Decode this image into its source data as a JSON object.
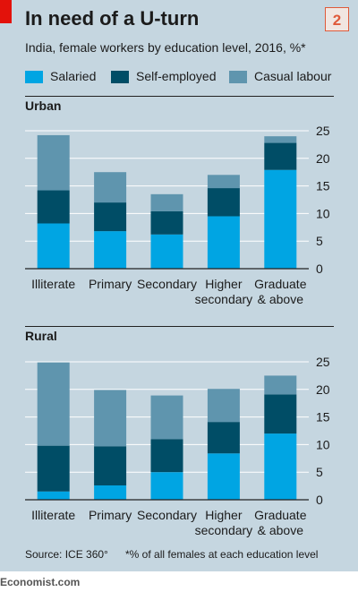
{
  "header": {
    "title": "In need of a U-turn",
    "badge": "2",
    "subtitle": "India, female workers by education level, 2016, %*"
  },
  "legend": [
    {
      "label": "Salaried",
      "color": "#00a5e3"
    },
    {
      "label": "Self-employed",
      "color": "#004d66"
    },
    {
      "label": "Casual labour",
      "color": "#5f95ae"
    }
  ],
  "footer": {
    "source": "Source: ICE 360°",
    "footnote": "*% of all females at each education level",
    "brand": "Economist.com"
  },
  "chart_data": [
    {
      "type": "bar",
      "stacked": true,
      "title": "Urban",
      "categories": [
        [
          "Illiterate"
        ],
        [
          "Primary"
        ],
        [
          "Secondary"
        ],
        [
          "Higher",
          "secondary"
        ],
        [
          "Graduate",
          "& above"
        ]
      ],
      "series": [
        {
          "name": "Salaried",
          "color": "#00a5e3",
          "values": [
            8.2,
            6.8,
            6.2,
            9.5,
            17.9
          ]
        },
        {
          "name": "Self-employed",
          "color": "#004d66",
          "values": [
            6.0,
            5.2,
            4.2,
            5.1,
            4.9
          ]
        },
        {
          "name": "Casual labour",
          "color": "#5f95ae",
          "values": [
            10.0,
            5.5,
            3.1,
            2.4,
            1.2
          ]
        }
      ],
      "ylim": [
        0,
        25
      ],
      "yticks": [
        0,
        5,
        10,
        15,
        20,
        25
      ],
      "grid": true,
      "y_axis_side": "right"
    },
    {
      "type": "bar",
      "stacked": true,
      "title": "Rural",
      "categories": [
        [
          "Illiterate"
        ],
        [
          "Primary"
        ],
        [
          "Secondary"
        ],
        [
          "Higher",
          "secondary"
        ],
        [
          "Graduate",
          "& above"
        ]
      ],
      "series": [
        {
          "name": "Salaried",
          "color": "#00a5e3",
          "values": [
            1.5,
            2.6,
            5.0,
            8.4,
            12.0
          ]
        },
        {
          "name": "Self-employed",
          "color": "#004d66",
          "values": [
            8.3,
            7.1,
            6.0,
            5.7,
            7.1
          ]
        },
        {
          "name": "Casual labour",
          "color": "#5f95ae",
          "values": [
            15.1,
            10.2,
            7.9,
            6.0,
            3.4
          ]
        }
      ],
      "ylim": [
        0,
        25
      ],
      "yticks": [
        0,
        5,
        10,
        15,
        20,
        25
      ],
      "grid": true,
      "y_axis_side": "right"
    }
  ]
}
